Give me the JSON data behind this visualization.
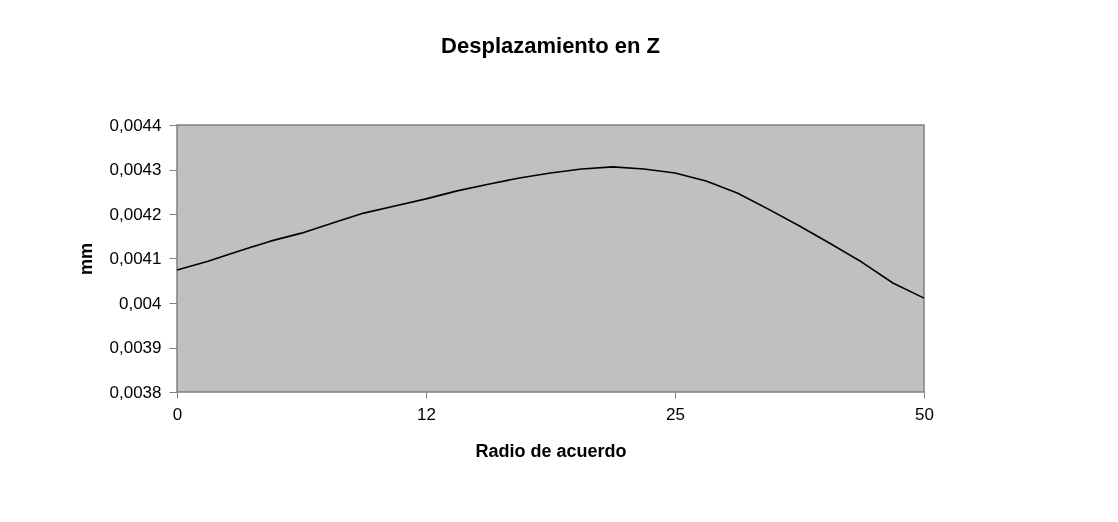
{
  "chart_data": {
    "type": "line",
    "title": "Desplazamiento en Z",
    "xlabel": "Radio de acuerdo",
    "ylabel": "mm",
    "categories": [
      "0",
      null,
      null,
      null,
      null,
      null,
      null,
      null,
      "12",
      null,
      null,
      null,
      null,
      null,
      null,
      null,
      "25",
      null,
      null,
      null,
      null,
      null,
      null,
      null,
      "50"
    ],
    "values": [
      0.004074,
      0.004094,
      0.004117,
      0.004139,
      0.004157,
      0.00418,
      0.004202,
      0.004218,
      0.004234,
      0.004252,
      0.004267,
      0.004281,
      0.004292,
      0.004301,
      0.004306,
      0.004301,
      0.004292,
      0.004274,
      0.004247,
      0.004211,
      0.004173,
      0.004133,
      0.004092,
      0.004045,
      0.004011
    ],
    "color": "#000000",
    "ylim": [
      0.0038,
      0.0044
    ],
    "yticks": [
      {
        "value": 0.0038,
        "label": "0,0038"
      },
      {
        "value": 0.0039,
        "label": "0,0039"
      },
      {
        "value": 0.004,
        "label": "0,004"
      },
      {
        "value": 0.0041,
        "label": "0,0041"
      },
      {
        "value": 0.0042,
        "label": "0,0042"
      },
      {
        "value": 0.0043,
        "label": "0,0043"
      },
      {
        "value": 0.0044,
        "label": "0,0044"
      }
    ]
  }
}
